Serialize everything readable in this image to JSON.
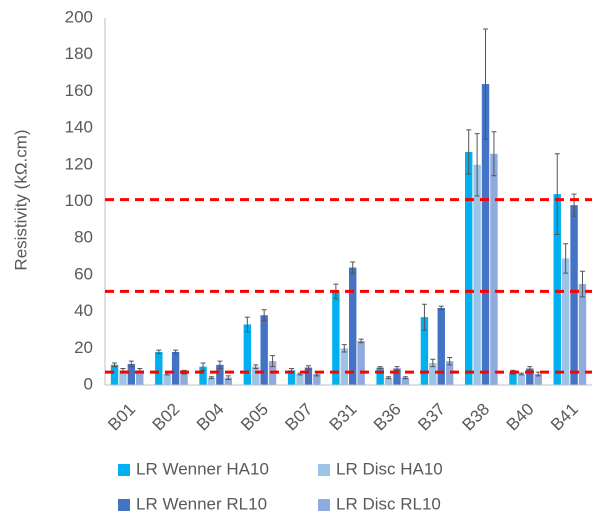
{
  "chart_data": {
    "type": "bar",
    "ylabel": "Resistivity (kΩ.cm)",
    "categories": [
      "B01",
      "B02",
      "B04",
      "B05",
      "B07",
      "B31",
      "B36",
      "B37",
      "B38",
      "B40",
      "B41"
    ],
    "series": [
      {
        "name": "LR Wenner HA10",
        "color": "#00b0f0",
        "values": [
          11,
          18,
          10,
          33,
          8,
          51,
          9.5,
          37,
          127,
          7,
          104
        ],
        "errors": [
          1,
          1,
          2,
          4,
          1,
          4,
          0.5,
          7,
          12,
          1,
          22
        ]
      },
      {
        "name": "LR Disc HA10",
        "color": "#9dc3e6",
        "values": [
          8,
          6,
          4,
          10,
          6,
          20,
          4,
          12,
          120,
          6,
          69
        ],
        "errors": [
          1,
          0.5,
          0.5,
          1,
          0.5,
          2,
          0.5,
          2,
          17,
          0.5,
          8
        ]
      },
      {
        "name": "LR Wenner RL10",
        "color": "#4472c4",
        "values": [
          11.5,
          18,
          11,
          38,
          9.5,
          64,
          9,
          42,
          164,
          9,
          98
        ],
        "errors": [
          1.5,
          1,
          2,
          3,
          1,
          3,
          1,
          1,
          30,
          1,
          6
        ]
      },
      {
        "name": "LR Disc RL10",
        "color": "#8faadc",
        "values": [
          8,
          7,
          4,
          13,
          6,
          24,
          4,
          13,
          126,
          6,
          55
        ],
        "errors": [
          1,
          1,
          1,
          3,
          1,
          1,
          0.5,
          2,
          12,
          1,
          7
        ]
      }
    ],
    "reference_lines": [
      7,
      51,
      101
    ],
    "reference_color": "#ff0000",
    "ylim": [
      0,
      200
    ],
    "yticks": [
      0,
      20,
      40,
      60,
      80,
      100,
      120,
      140,
      160,
      180,
      200
    ],
    "grid": false
  }
}
